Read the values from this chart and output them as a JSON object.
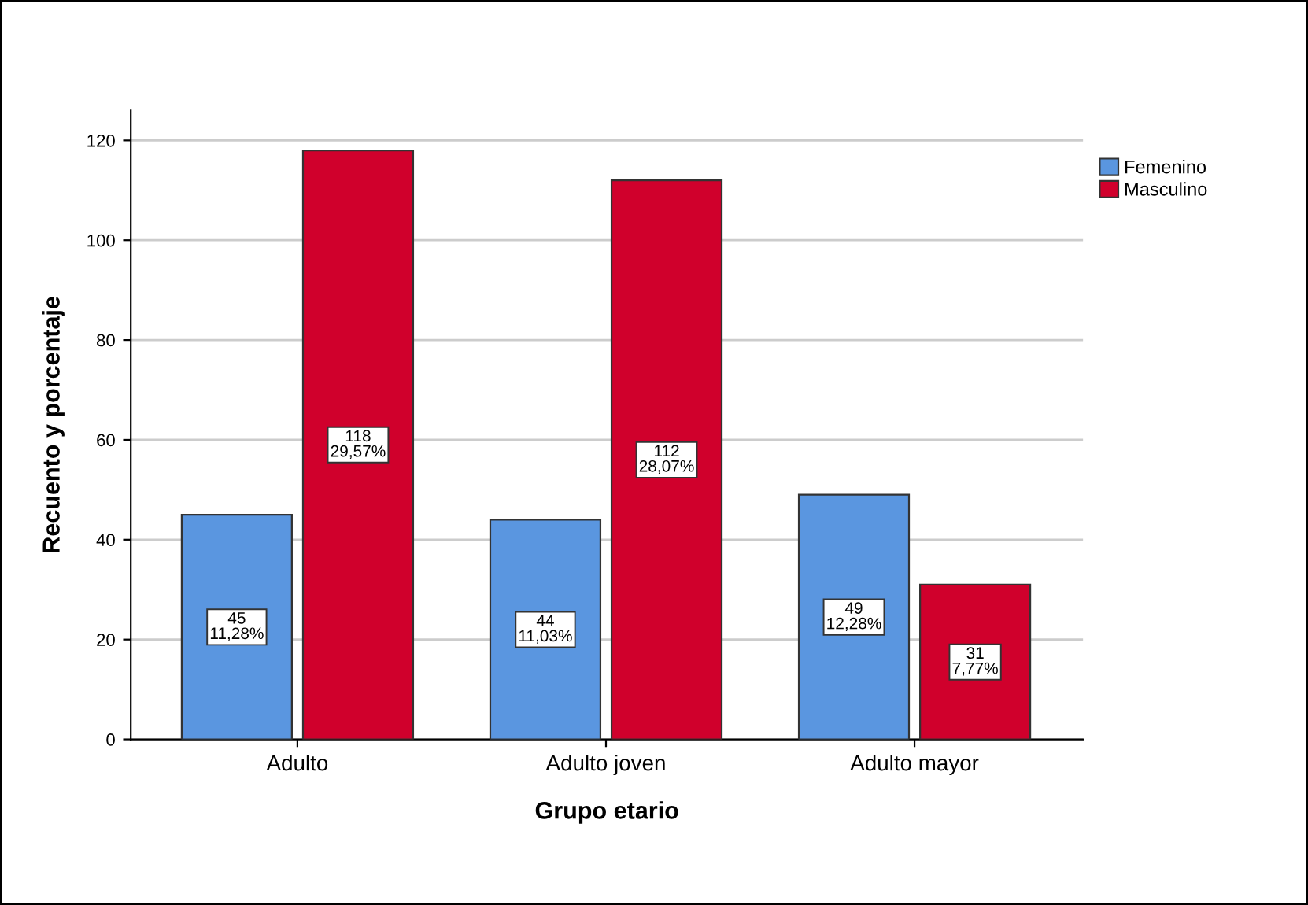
{
  "chart_data": {
    "type": "bar",
    "xlabel": "Grupo etario",
    "ylabel": "Recuento y porcentaje",
    "categories": [
      "Adulto",
      "Adulto joven",
      "Adulto mayor"
    ],
    "series": [
      {
        "name": "Femenino",
        "color": "#5a96e0",
        "values": [
          45,
          44,
          49
        ],
        "value_labels": [
          "45\n11,28%",
          "44\n11,03%",
          "49\n12,28%"
        ]
      },
      {
        "name": "Masculino",
        "color": "#d0002c",
        "values": [
          118,
          112,
          31
        ],
        "value_labels": [
          "118\n29,57%",
          "112\n28,07%",
          "31\n7,77%"
        ]
      }
    ],
    "ylim": [
      0,
      126
    ],
    "yticks": [
      0,
      20,
      40,
      60,
      80,
      100,
      120
    ],
    "grid": "y",
    "legend": "top right"
  }
}
